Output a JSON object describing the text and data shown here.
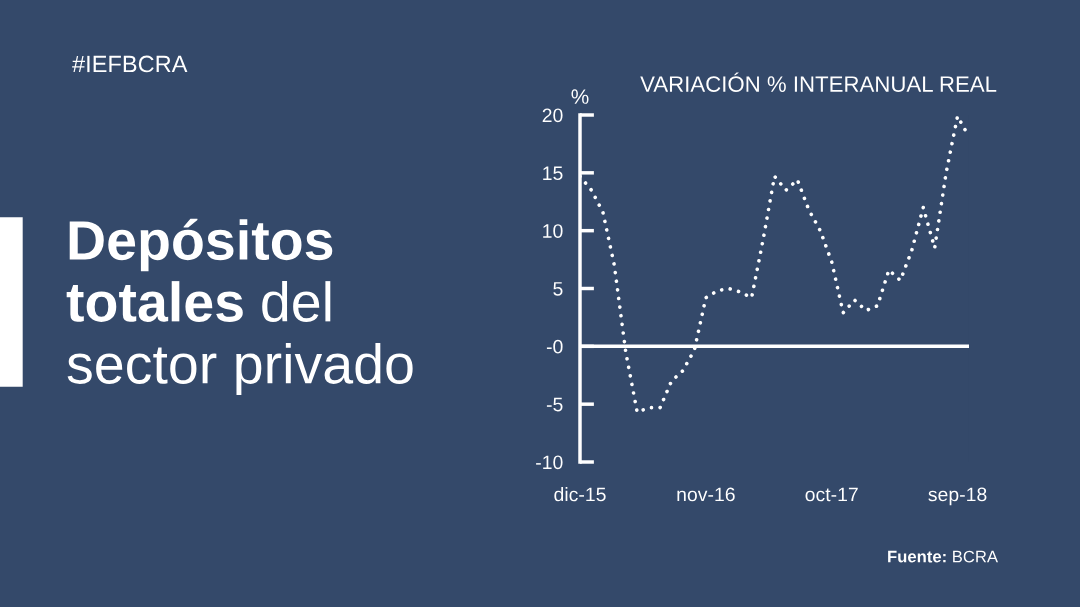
{
  "chart_data": {
    "type": "line",
    "title": "Depósitos totales del sector privado",
    "subtitle": "VARIACIÓN % INTERANUAL REAL",
    "ylabel": "%",
    "categories": [
      "dic-15",
      null,
      null,
      null,
      null,
      null,
      null,
      null,
      null,
      null,
      null,
      "nov-16",
      null,
      null,
      null,
      null,
      null,
      null,
      null,
      null,
      null,
      null,
      "oct-17",
      null,
      null,
      null,
      null,
      null,
      null,
      null,
      null,
      null,
      null,
      "sep-18",
      null
    ],
    "series": [
      {
        "color": "#ffffff",
        "values": [
          14.7,
          13.5,
          11.6,
          7.0,
          -0.5,
          -5.7,
          -5.3,
          -5.3,
          -3.0,
          -2.1,
          -0.3,
          4.2,
          4.8,
          5.0,
          4.7,
          4.2,
          9.2,
          14.7,
          13.5,
          14.4,
          11.8,
          10.0,
          7.3,
          2.9,
          4.0,
          3.1,
          3.5,
          6.6,
          5.7,
          8.3,
          12.0,
          8.5,
          15.0,
          19.9,
          18.1
        ]
      }
    ],
    "ylim": [
      -10,
      20
    ],
    "yticks": [
      -10,
      -5,
      {
        "value": 0,
        "label": "-0"
      },
      5,
      10,
      15,
      20
    ],
    "ref_lines": [
      {
        "axis": "y",
        "value": 0,
        "color": "#ffffff"
      }
    ],
    "line_style": "dotted",
    "marker": "none",
    "grid": false,
    "legend": false,
    "annotations": [
      "#IEFBCRA",
      "Fuente: BCRA"
    ]
  }
}
